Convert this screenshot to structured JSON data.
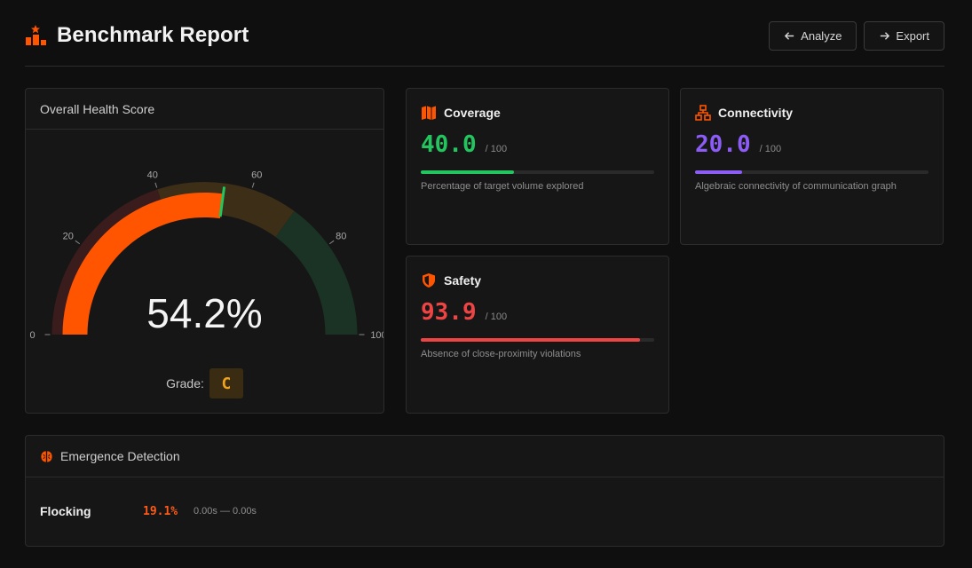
{
  "header": {
    "title": "Benchmark Report",
    "analyze_label": "Analyze",
    "export_label": "Export"
  },
  "health": {
    "title": "Overall Health Score",
    "score_text": "54.2%",
    "score_fraction": 0.542,
    "ticks": [
      "0",
      "20",
      "40",
      "60",
      "80",
      "100"
    ],
    "grade_label": "Grade:",
    "grade": "C",
    "colors": {
      "fill": "#ff5500",
      "zone_low": "#3a1c1c",
      "zone_mid": "#3d2e17",
      "zone_high": "#1b3324",
      "marker": "#22c55e"
    }
  },
  "metrics": {
    "coverage": {
      "title": "Coverage",
      "value": "40.0",
      "denominator": "/ 100",
      "fraction": 0.4,
      "description": "Percentage of target volume explored",
      "color": "#22c55e",
      "icon": "map-icon"
    },
    "connectivity": {
      "title": "Connectivity",
      "value": "20.0",
      "denominator": "/ 100",
      "fraction": 0.2,
      "description": "Algebraic connectivity of communication graph",
      "color": "#8b5cf6",
      "icon": "network-icon"
    },
    "safety": {
      "title": "Safety",
      "value": "93.9",
      "denominator": "/ 100",
      "fraction": 0.939,
      "description": "Absence of close-proximity violations",
      "color": "#ef4444",
      "icon": "shield-icon"
    }
  },
  "emergence": {
    "title": "Emergence Detection",
    "rows": [
      {
        "name": "Flocking",
        "percent": "19.1%",
        "time": "0.00s — 0.00s"
      }
    ]
  },
  "accent": "#ff5500"
}
